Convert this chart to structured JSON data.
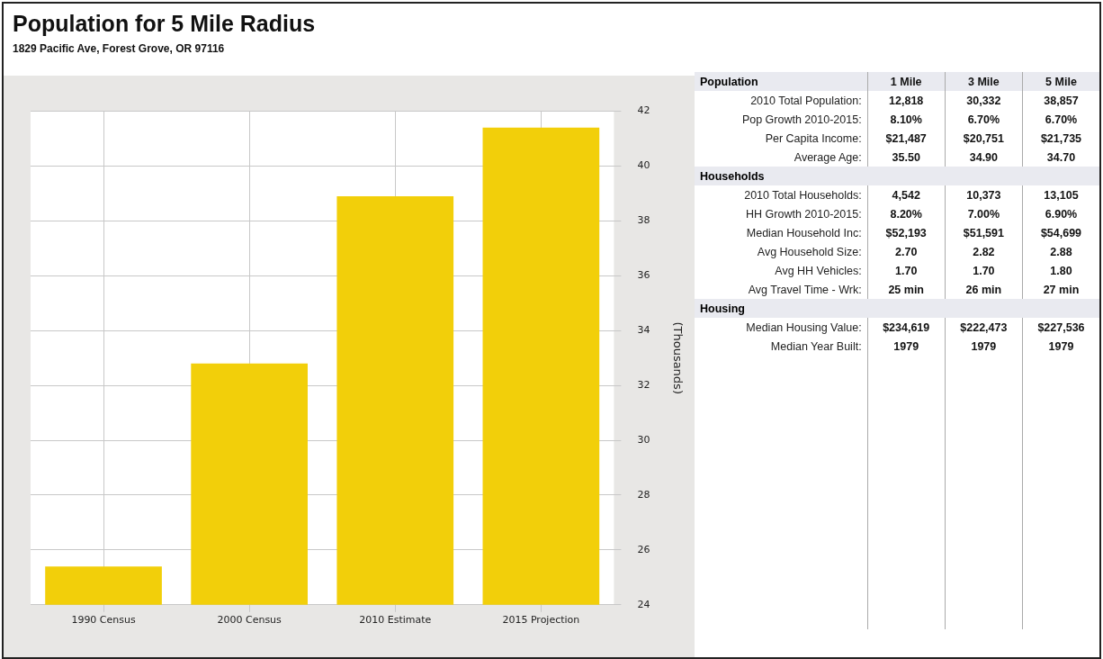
{
  "chart_data": [
    {
      "type": "bar",
      "title": "Population for 5 Mile Radius",
      "subtitle": "1829 Pacific Ave, Forest Grove, OR 97116",
      "ylabel": "(Thousands)",
      "categories": [
        "1990 Census",
        "2000 Census",
        "2010 Estimate",
        "2015 Projection"
      ],
      "values": [
        25.4,
        32.8,
        38.9,
        41.4
      ],
      "color": "#f2cf0a",
      "ylim": [
        24,
        42
      ],
      "yticks": [
        24,
        26,
        28,
        30,
        32,
        34,
        36,
        38,
        40,
        42
      ],
      "grid": true,
      "legend": false
    },
    {
      "type": "other",
      "title": "Population",
      "categories": [
        "1 Mile",
        "3 Mile",
        "5 Mile"
      ],
      "y_categories": [
        "2010 Total Population:",
        "Pop Growth 2010-2015:",
        "Per Capita Income:",
        "Average Age:",
        "Households",
        "2010 Total Households:",
        "HH Growth 2010-2015:",
        "Median Household Inc:",
        "Avg Household Size:",
        "Avg HH Vehicles:",
        "Avg Travel Time - Wrk:",
        "Housing",
        "Median Housing Value:",
        "Median Year Built:"
      ],
      "cell_labels": [
        [
          "12,818",
          "30,332",
          "38,857"
        ],
        [
          "8.10%",
          "6.70%",
          "6.70%"
        ],
        [
          "$21,487",
          "$20,751",
          "$21,735"
        ],
        [
          "35.50",
          "34.90",
          "34.70"
        ],
        null,
        [
          "4,542",
          "10,373",
          "13,105"
        ],
        [
          "8.20%",
          "7.00%",
          "6.90%"
        ],
        [
          "$52,193",
          "$51,591",
          "$54,699"
        ],
        [
          "2.70",
          "2.82",
          "2.88"
        ],
        [
          "1.70",
          "1.70",
          "1.80"
        ],
        [
          "25 min",
          "26 min",
          "27 min"
        ],
        null,
        [
          "$234,619",
          "$222,473",
          "$227,536"
        ],
        [
          "1979",
          "1979",
          "1979"
        ]
      ]
    }
  ]
}
